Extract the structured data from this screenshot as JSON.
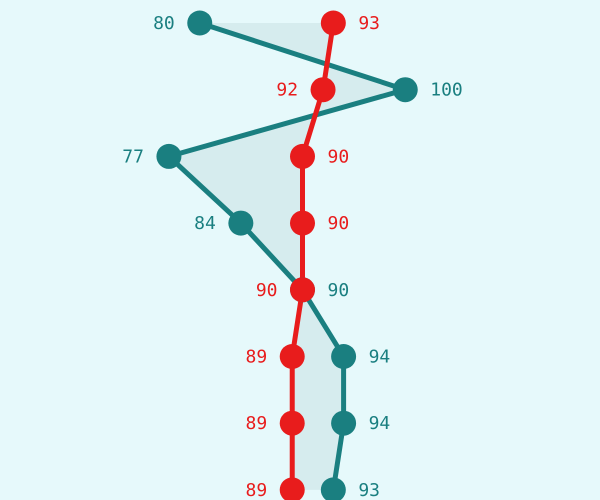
{
  "chart_data": {
    "type": "line",
    "orientation": "vertical-categories",
    "xlim": [
      70,
      110
    ],
    "grid": false,
    "legend": "none",
    "series": [
      {
        "color": "#1a7f80",
        "values": [
          80,
          100,
          77,
          84,
          90,
          94,
          94,
          93
        ],
        "label_side": "auto"
      },
      {
        "color": "#e81c1c",
        "values": [
          93,
          92,
          90,
          90,
          90,
          89,
          89,
          89
        ],
        "label_side": "auto"
      }
    ],
    "fill_color": "#d6ecee"
  }
}
